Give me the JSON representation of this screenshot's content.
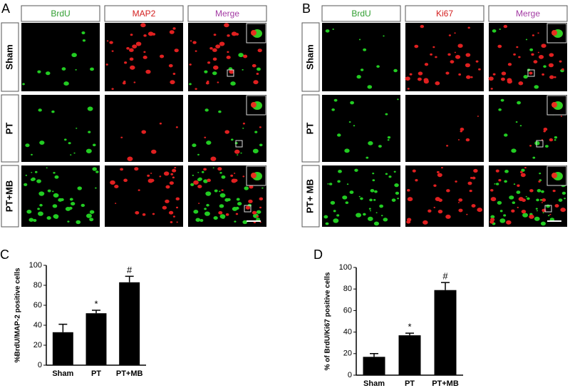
{
  "panels": [
    {
      "label": "A",
      "columns": [
        {
          "text": "BrdU",
          "color": "#2f9e2f"
        },
        {
          "text": "MAP2",
          "color": "#d42020"
        },
        {
          "text": "Merge",
          "color": "#a33aa3"
        }
      ],
      "rows": [
        "Sham",
        "PT",
        "PT+MB"
      ]
    },
    {
      "label": "B",
      "columns": [
        {
          "text": "BrdU",
          "color": "#2f9e2f"
        },
        {
          "text": "Ki67",
          "color": "#d42020"
        },
        {
          "text": "Merge",
          "color": "#a33aa3"
        }
      ],
      "rows": [
        "Sham",
        "PT",
        "PT+ MB"
      ]
    }
  ],
  "chart_data": [
    {
      "type": "bar",
      "label": "C",
      "ylabel": "%BrdU/MAP-2 positive cells",
      "categories": [
        "Sham",
        "PT",
        "PT+MB"
      ],
      "values": [
        33,
        52,
        83
      ],
      "errors": [
        8,
        3,
        6
      ],
      "color": "#000000",
      "ylim": [
        0,
        100
      ],
      "yticks": [
        0,
        20,
        40,
        60,
        80,
        100
      ],
      "annotations": [
        {
          "text": "*",
          "category": 1
        },
        {
          "text": "#",
          "category": 2
        }
      ]
    },
    {
      "type": "bar",
      "label": "D",
      "ylabel": "% of BrdU/Ki67 positive cells",
      "categories": [
        "Sham",
        "PT",
        "PT+MB"
      ],
      "values": [
        17,
        37,
        79
      ],
      "errors": [
        3,
        2,
        7
      ],
      "color": "#000000",
      "ylim": [
        0,
        100
      ],
      "yticks": [
        0,
        20,
        40,
        60,
        80,
        100
      ],
      "annotations": [
        {
          "text": "*",
          "category": 1
        },
        {
          "text": "#",
          "category": 2
        }
      ]
    }
  ]
}
